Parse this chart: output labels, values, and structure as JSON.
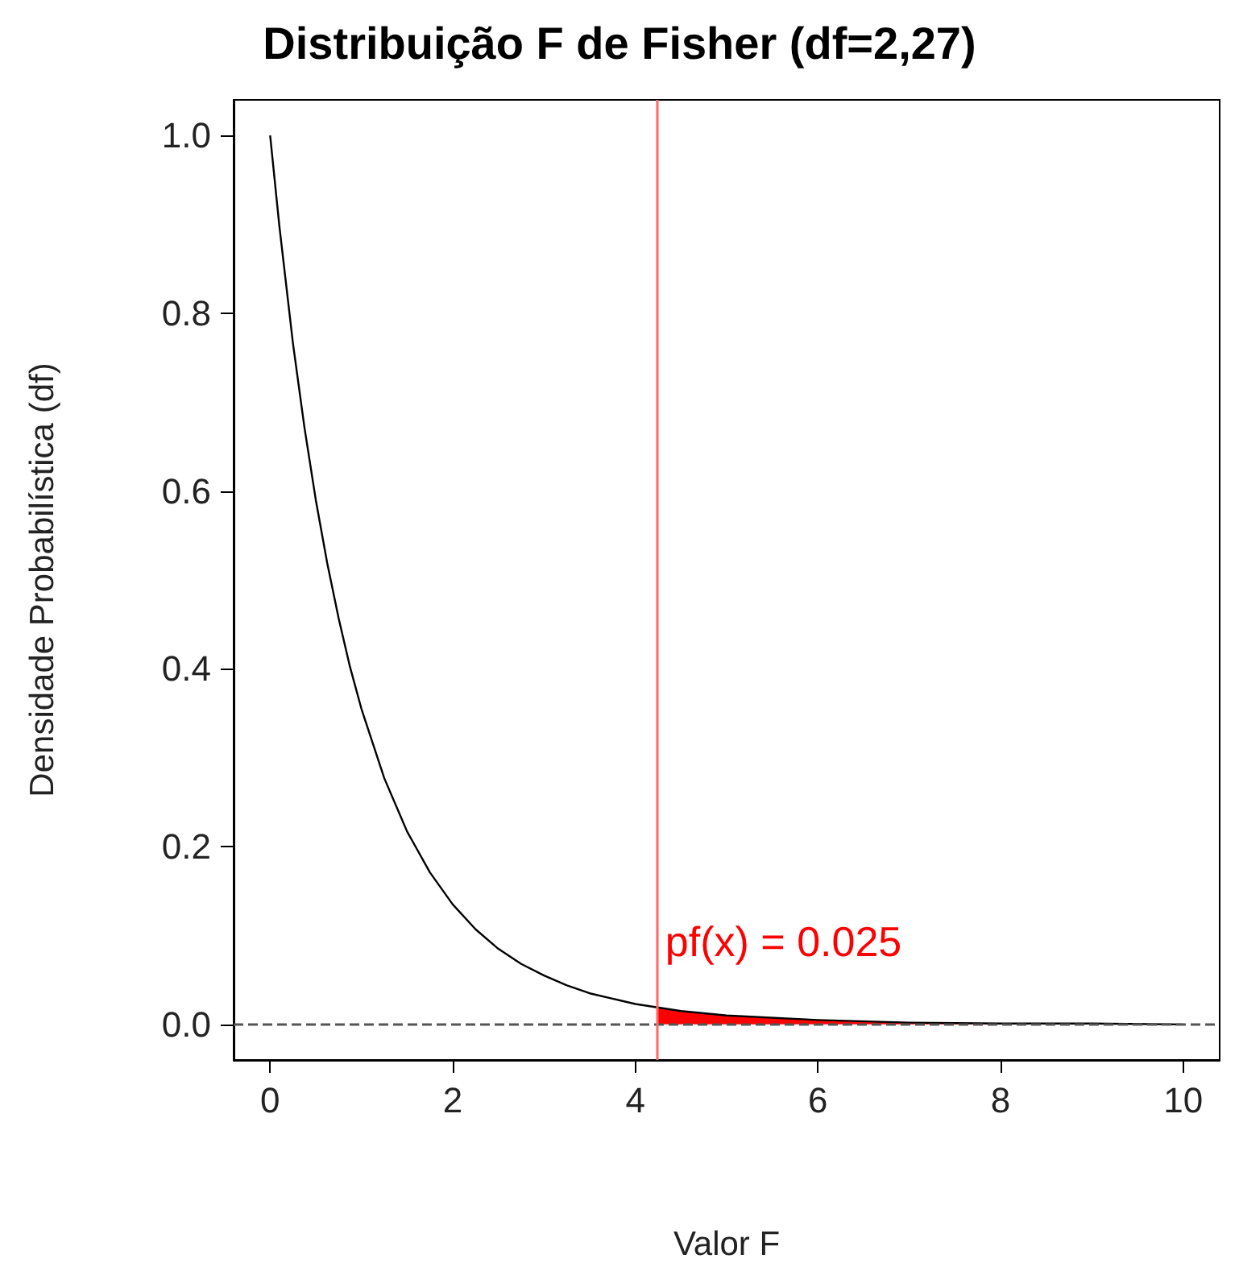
{
  "chart_data": {
    "type": "line",
    "title": "Distribuição F de Fisher (df=2,27)",
    "xlabel": "Valor F",
    "ylabel": "Densidade Probabilística (df)",
    "series": [
      {
        "color": "#000000",
        "x": [
          0,
          0.1,
          0.25,
          0.375,
          0.5,
          0.625,
          0.75,
          0.875,
          1,
          1.25,
          1.5,
          1.75,
          2,
          2.25,
          2.5,
          2.75,
          3,
          3.25,
          3.5,
          3.75,
          4,
          4.5,
          5,
          6,
          7,
          8,
          9,
          10
        ],
        "values": [
          1,
          0.899,
          0.766,
          0.672,
          0.59,
          0.519,
          0.457,
          0.402,
          0.355,
          0.277,
          0.217,
          0.171,
          0.135,
          0.107,
          0.085,
          0.068,
          0.055,
          0.044,
          0.035,
          0.029,
          0.023,
          0.015,
          0.01,
          0.005,
          0.002,
          0.001,
          0.001,
          0
        ]
      },
      {
        "type": "area",
        "color": "#ff0000",
        "x": [
          4.24,
          4.5,
          5,
          6,
          7,
          8,
          9,
          10
        ],
        "values": [
          0.019,
          0.015,
          0.01,
          0.005,
          0.002,
          0.001,
          0.001,
          0
        ]
      }
    ],
    "xlim": [
      -0.4,
      10.4
    ],
    "ylim": [
      -0.04,
      1.04
    ],
    "xticks": [
      0,
      2,
      4,
      6,
      8,
      10
    ],
    "yticks": [
      {
        "value": 0,
        "label": "0.0"
      },
      {
        "value": 0.2,
        "label": "0.2"
      },
      {
        "value": 0.4,
        "label": "0.4"
      },
      {
        "value": 0.6,
        "label": "0.6"
      },
      {
        "value": 0.8,
        "label": "0.8"
      },
      {
        "value": 1,
        "label": "1.0"
      }
    ],
    "ref_lines": [
      {
        "axis": "y",
        "value": 0,
        "color": "#555555",
        "line_style": "dashed"
      },
      {
        "axis": "x",
        "value": 4.24,
        "color": "#ff6666",
        "line_style": "solid"
      }
    ],
    "annotations": [
      {
        "text": "pf(x) = 0.025",
        "x": 4.24,
        "y": 0.07
      }
    ],
    "marker": "none",
    "line_style": "solid"
  }
}
